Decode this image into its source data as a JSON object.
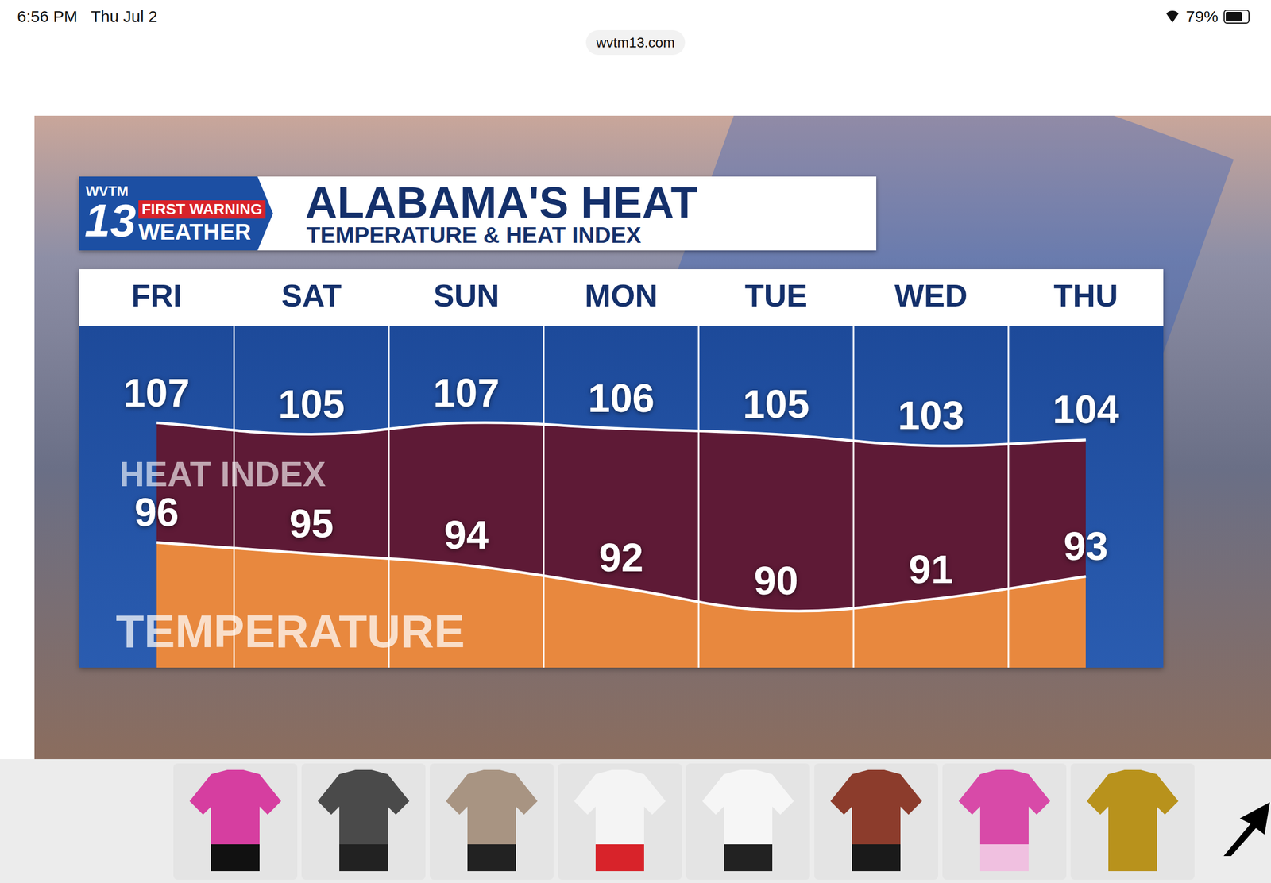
{
  "status_bar": {
    "time": "6:56 PM",
    "date": "Thu Jul 2",
    "battery": "79%"
  },
  "url": "wvtm13.com",
  "branding": {
    "station": "WVTM",
    "channel": "13",
    "badge": "FIRST WARNING",
    "label": "WEATHER"
  },
  "chart_data": {
    "type": "line",
    "title": "ALABAMA'S HEAT",
    "subtitle": "TEMPERATURE & HEAT INDEX",
    "categories": [
      "FRI",
      "SAT",
      "SUN",
      "MON",
      "TUE",
      "WED",
      "THU"
    ],
    "series": [
      {
        "name": "HEAT INDEX",
        "color": "#5e1a36",
        "axis": "y2",
        "values": [
          107,
          105,
          107,
          106,
          105,
          103,
          104
        ]
      },
      {
        "name": "TEMPERATURE",
        "color": "#e8883e",
        "values": [
          96,
          95,
          94,
          92,
          90,
          91,
          93
        ]
      }
    ],
    "ylim": [
      85,
      115
    ],
    "yticks": [
      85,
      115
    ],
    "y2lim": [
      64,
      124
    ],
    "y2ticks": [
      64,
      124
    ],
    "grid": true,
    "data_labels": true,
    "tick_labels": "x"
  }
}
